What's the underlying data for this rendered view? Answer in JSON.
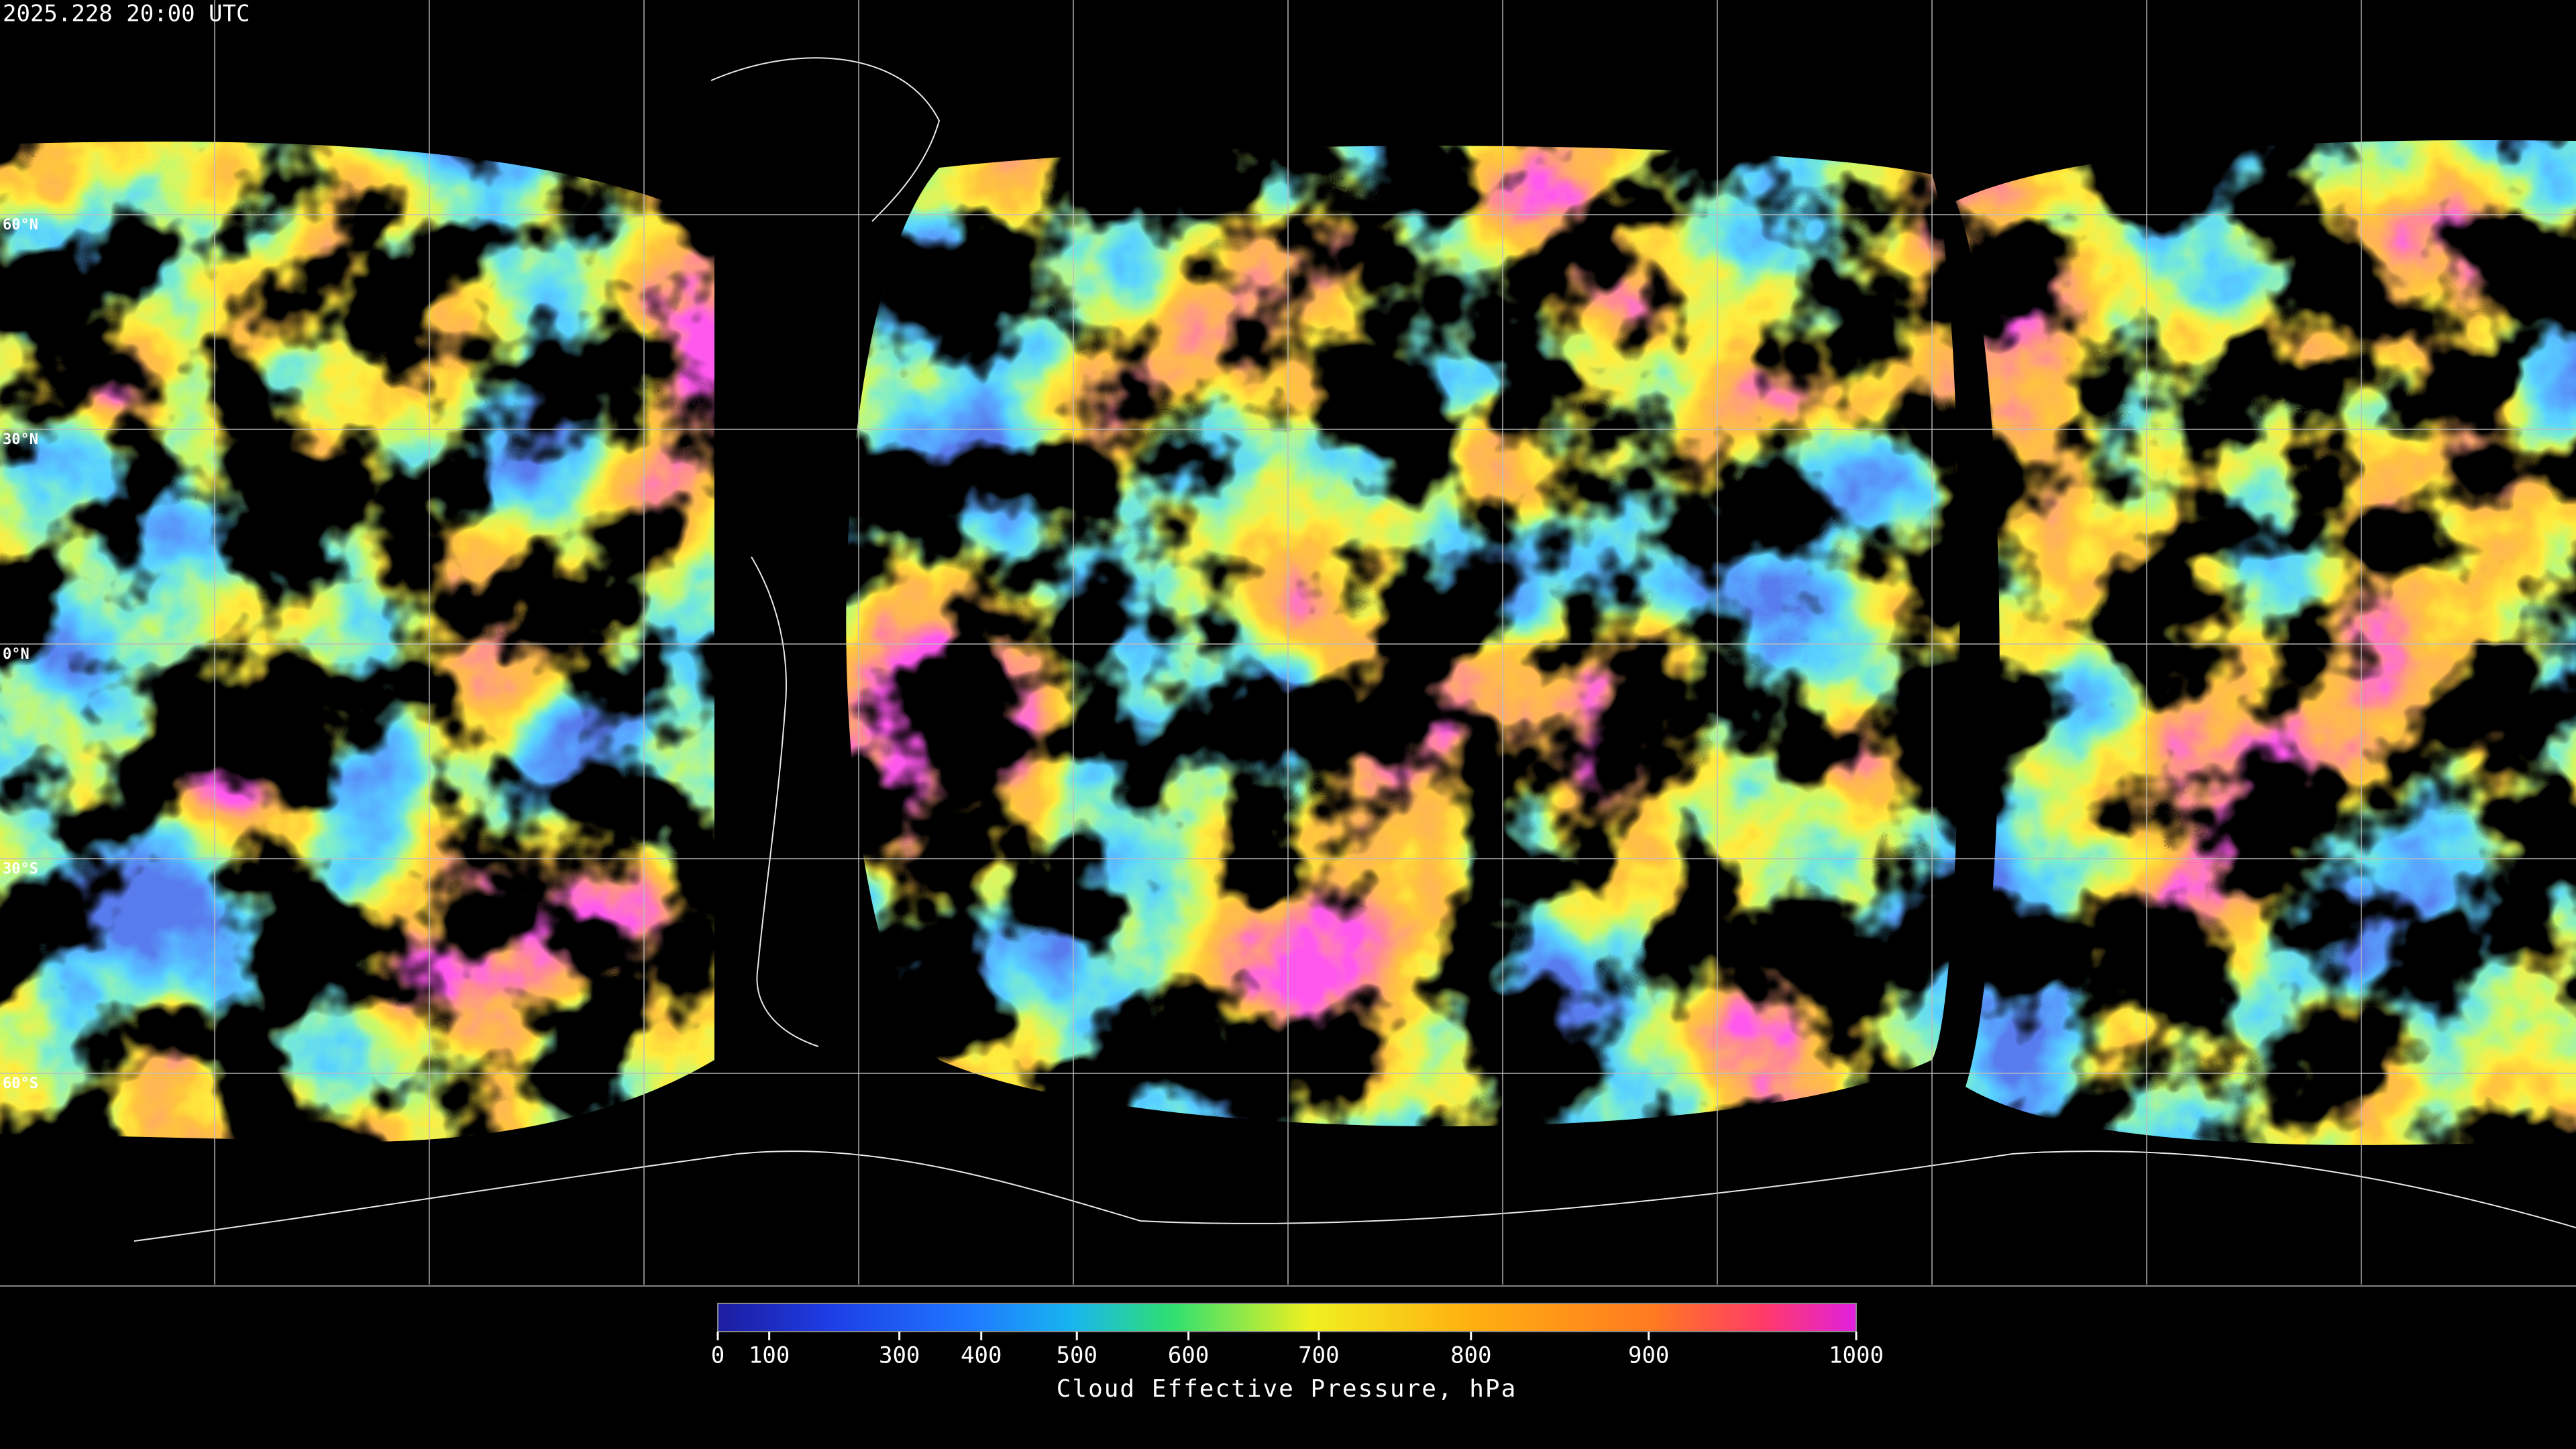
{
  "timestamp": "2025.228 20:00 UTC",
  "latitude_labels": [
    "60°N",
    "30°N",
    "0°N",
    "30°S",
    "60°S"
  ],
  "colorbar": {
    "title": "Cloud Effective Pressure, hPa",
    "range": [
      0,
      1000
    ],
    "ticks": [
      0,
      100,
      300,
      400,
      500,
      600,
      700,
      800,
      900,
      1000
    ]
  }
}
